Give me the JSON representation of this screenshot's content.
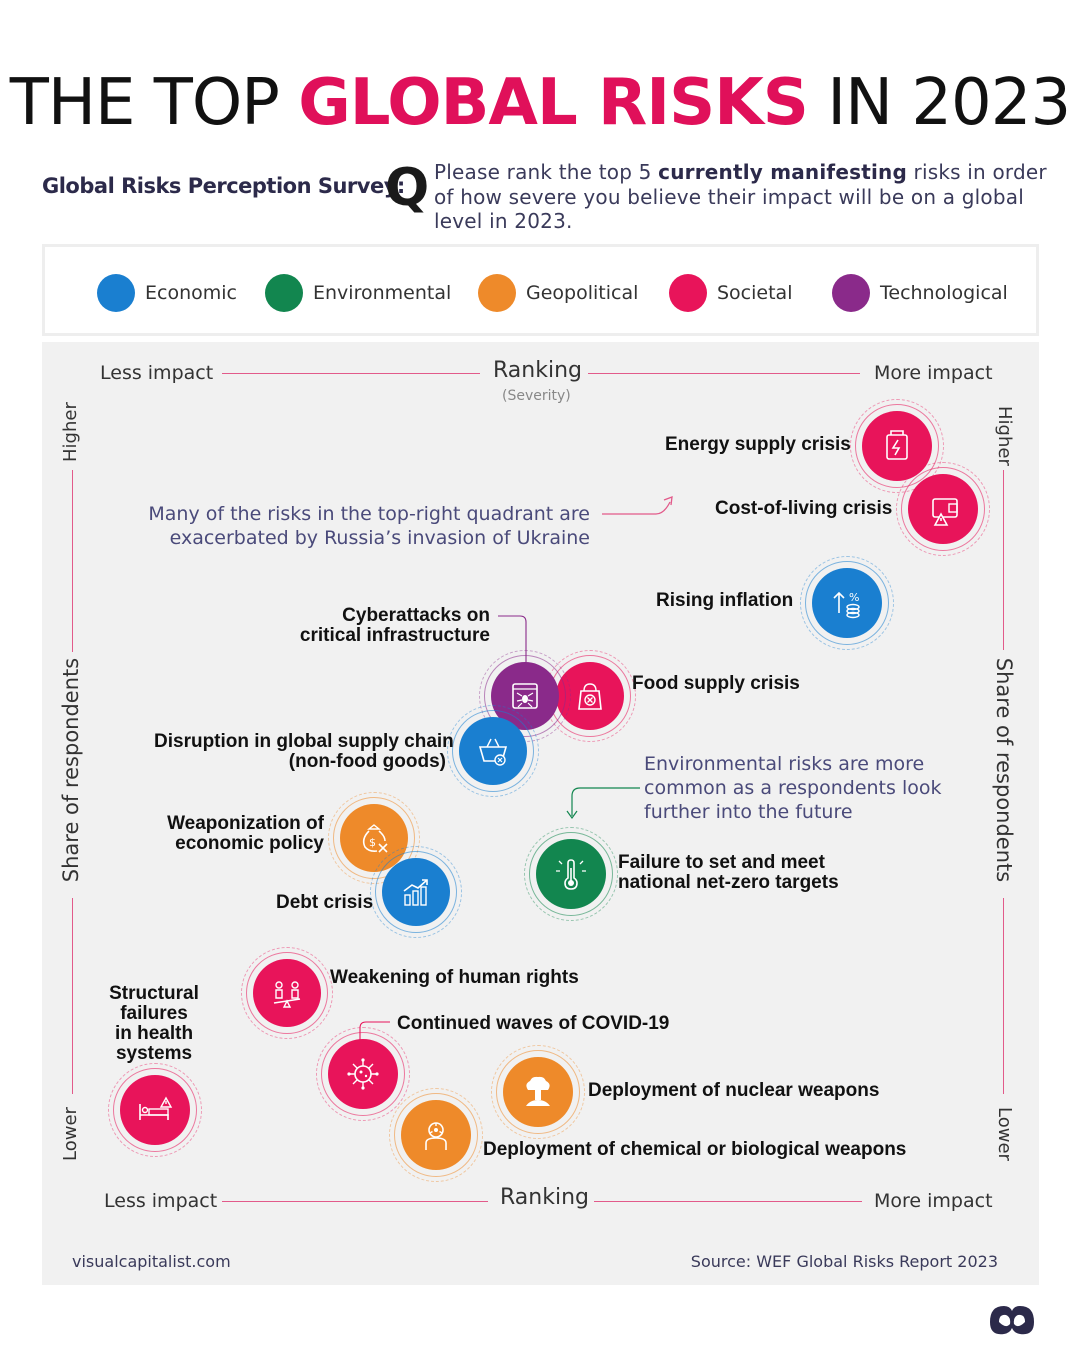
{
  "title": {
    "part1": "THE TOP",
    "part2": "GLOBAL RISKS",
    "part3": "IN 2023"
  },
  "survey": {
    "label": "Global Risks Perception Survey:",
    "q": "Q",
    "question_pre": "Please rank the top 5 ",
    "question_bold": "currently manifesting",
    "question_post": " risks in order of how severe you believe their impact will be on a global level in 2023."
  },
  "legend": [
    {
      "label": "Economic",
      "color": "#1a7fd0"
    },
    {
      "label": "Environmental",
      "color": "#12864f"
    },
    {
      "label": "Geopolitical",
      "color": "#ee8a2a"
    },
    {
      "label": "Societal",
      "color": "#e8145a"
    },
    {
      "label": "Technological",
      "color": "#8a2a8a"
    }
  ],
  "axes": {
    "less_impact": "Less impact",
    "more_impact": "More impact",
    "ranking": "Ranking",
    "severity": "(Severity)",
    "higher": "Higher",
    "lower": "Lower",
    "share": "Share of respondents"
  },
  "notes": {
    "ukraine": [
      "Many of the risks in the top-right quadrant are",
      "exacerbated by Russia’s invasion of Ukraine"
    ],
    "environment": [
      "Environmental risks are more",
      "common as a respondents look",
      "further into the future"
    ]
  },
  "chart_data": {
    "type": "scatter",
    "title": "THE TOP GLOBAL RISKS IN 2023",
    "xlabel": "Ranking (Severity)",
    "ylabel": "Share of respondents",
    "points": [
      {
        "name": "Energy supply crisis",
        "category": "Societal",
        "x": 0.93,
        "y": 0.95
      },
      {
        "name": "Cost-of-living crisis",
        "category": "Societal",
        "x": 0.97,
        "y": 0.88
      },
      {
        "name": "Rising inflation",
        "category": "Economic",
        "x": 0.83,
        "y": 0.78
      },
      {
        "name": "Cyberattacks on critical infrastructure",
        "category": "Technological",
        "x": 0.5,
        "y": 0.68
      },
      {
        "name": "Food supply crisis",
        "category": "Societal",
        "x": 0.56,
        "y": 0.68
      },
      {
        "name": "Disruption in global supply chain (non-food goods)",
        "category": "Geopolitical",
        "x": 0.46,
        "y": 0.62
      },
      {
        "name": "Weaponization of economic policy",
        "category": "Geopolitical",
        "x": 0.34,
        "y": 0.52
      },
      {
        "name": "Debt crisis",
        "category": "Economic",
        "x": 0.38,
        "y": 0.46
      },
      {
        "name": "Failure to set and meet national net-zero targets",
        "category": "Environmental",
        "x": 0.54,
        "y": 0.47
      },
      {
        "name": "Weakening of human rights",
        "category": "Societal",
        "x": 0.25,
        "y": 0.33
      },
      {
        "name": "Continued waves of COVID-19",
        "category": "Societal",
        "x": 0.33,
        "y": 0.23
      },
      {
        "name": "Structural failures in health systems",
        "category": "Societal",
        "x": 0.12,
        "y": 0.15
      },
      {
        "name": "Deployment of nuclear weapons",
        "category": "Geopolitical",
        "x": 0.5,
        "y": 0.17
      },
      {
        "name": "Deployment of chemical or biological weapons",
        "category": "Geopolitical",
        "x": 0.4,
        "y": 0.11
      }
    ]
  },
  "labels": {
    "energy": "Energy supply crisis",
    "cost": "Cost-of-living crisis",
    "inflation": "Rising inflation",
    "cyber1": "Cyberattacks on",
    "cyber2": "critical infrastructure",
    "food": "Food supply crisis",
    "supply1": "Disruption in global supply chain",
    "supply2": "(non-food goods)",
    "weapon1": "Weaponization of",
    "weapon2": "economic policy",
    "debt": "Debt crisis",
    "netzero1": "Failure to set and meet",
    "netzero2": "national net-zero targets",
    "rights": "Weakening of human rights",
    "covid": "Continued waves of COVID-19",
    "health1": "Structural",
    "health2": "failures",
    "health3": "in health",
    "health4": "systems",
    "nuclear": "Deployment of nuclear weapons",
    "chem": "Deployment of chemical or biological weapons"
  },
  "footer": {
    "left": "visualcapitalist.com",
    "right": "Source: WEF Global Risks Report 2023"
  },
  "icons": [
    "fuel-icon",
    "wallet-warning-icon",
    "inflation-coins-icon",
    "spider-web-icon",
    "food-bag-icon",
    "basket-icon",
    "money-bag-icon",
    "bar-growth-icon",
    "thermometer-icon",
    "people-scale-icon",
    "virus-icon",
    "hospital-bed-icon",
    "mushroom-cloud-icon",
    "biohazard-icon"
  ]
}
